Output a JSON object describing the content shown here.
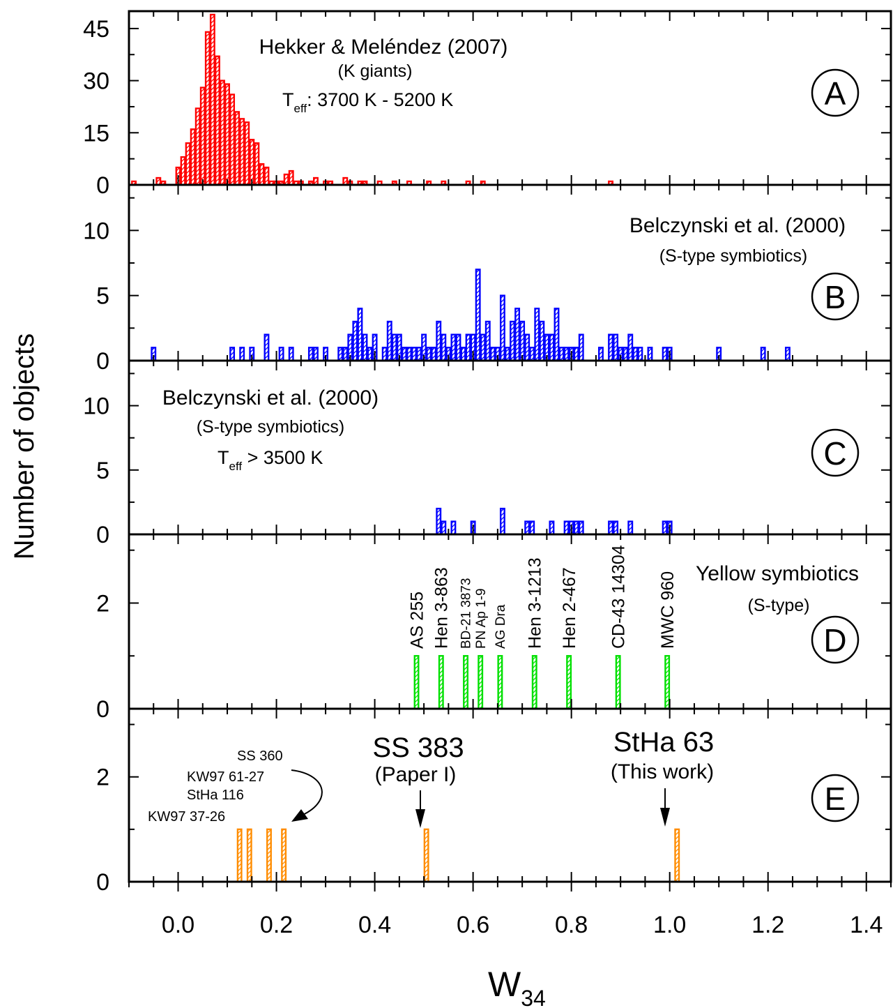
{
  "chart_data": {
    "type": "bar",
    "ylabel": "Number of objects",
    "xlabel_main": "W",
    "xlabel_sub": "34",
    "xlim": [
      -0.1,
      1.45
    ],
    "xticks": [
      "0.0",
      "0.2",
      "0.4",
      "0.6",
      "0.8",
      "1.0",
      "1.2",
      "1.4"
    ],
    "bin_width": 0.01,
    "panels": [
      {
        "id": "A",
        "badge": "A",
        "color": "#ff0000",
        "ylim": [
          0,
          50
        ],
        "yticks": [
          "0",
          "15",
          "30",
          "45"
        ],
        "annotation": {
          "line1": "Hekker & Meléndez (2007)",
          "line2": "(K giants)",
          "line3_pre": "T",
          "line3_sub": "eff",
          "line3_post": ": 3700 K - 5200 K"
        },
        "bins": [
          {
            "x": -0.09,
            "y": 1
          },
          {
            "x": -0.04,
            "y": 2
          },
          {
            "x": -0.03,
            "y": 1
          },
          {
            "x": 0.0,
            "y": 5
          },
          {
            "x": 0.01,
            "y": 8
          },
          {
            "x": 0.02,
            "y": 12
          },
          {
            "x": 0.03,
            "y": 16
          },
          {
            "x": 0.04,
            "y": 22
          },
          {
            "x": 0.05,
            "y": 28
          },
          {
            "x": 0.06,
            "y": 44
          },
          {
            "x": 0.07,
            "y": 49
          },
          {
            "x": 0.08,
            "y": 37
          },
          {
            "x": 0.09,
            "y": 30
          },
          {
            "x": 0.1,
            "y": 29
          },
          {
            "x": 0.11,
            "y": 26
          },
          {
            "x": 0.12,
            "y": 21
          },
          {
            "x": 0.13,
            "y": 19
          },
          {
            "x": 0.14,
            "y": 18
          },
          {
            "x": 0.15,
            "y": 13
          },
          {
            "x": 0.16,
            "y": 12
          },
          {
            "x": 0.17,
            "y": 6
          },
          {
            "x": 0.18,
            "y": 5
          },
          {
            "x": 0.19,
            "y": 1
          },
          {
            "x": 0.2,
            "y": 1
          },
          {
            "x": 0.21,
            "y": 1
          },
          {
            "x": 0.22,
            "y": 3
          },
          {
            "x": 0.23,
            "y": 4
          },
          {
            "x": 0.24,
            "y": 1
          },
          {
            "x": 0.25,
            "y": 1
          },
          {
            "x": 0.27,
            "y": 1
          },
          {
            "x": 0.28,
            "y": 2
          },
          {
            "x": 0.3,
            "y": 1
          },
          {
            "x": 0.31,
            "y": 1
          },
          {
            "x": 0.34,
            "y": 2
          },
          {
            "x": 0.35,
            "y": 1
          },
          {
            "x": 0.37,
            "y": 1
          },
          {
            "x": 0.38,
            "y": 1
          },
          {
            "x": 0.41,
            "y": 1
          },
          {
            "x": 0.44,
            "y": 1
          },
          {
            "x": 0.47,
            "y": 1
          },
          {
            "x": 0.51,
            "y": 1
          },
          {
            "x": 0.54,
            "y": 1
          },
          {
            "x": 0.59,
            "y": 1
          },
          {
            "x": 0.62,
            "y": 1
          },
          {
            "x": 0.88,
            "y": 1
          }
        ]
      },
      {
        "id": "B",
        "badge": "B",
        "color": "#0000ff",
        "ylim": [
          0,
          13.5
        ],
        "yticks": [
          "0",
          "5",
          "10"
        ],
        "annotation": {
          "line1": "Belczynski et al. (2000)",
          "line2": "(S-type symbiotics)"
        },
        "bins": [
          {
            "x": -0.05,
            "y": 1
          },
          {
            "x": 0.11,
            "y": 1
          },
          {
            "x": 0.13,
            "y": 1
          },
          {
            "x": 0.15,
            "y": 1
          },
          {
            "x": 0.18,
            "y": 2
          },
          {
            "x": 0.21,
            "y": 1
          },
          {
            "x": 0.23,
            "y": 1
          },
          {
            "x": 0.27,
            "y": 1
          },
          {
            "x": 0.28,
            "y": 1
          },
          {
            "x": 0.3,
            "y": 1
          },
          {
            "x": 0.33,
            "y": 1
          },
          {
            "x": 0.34,
            "y": 1
          },
          {
            "x": 0.35,
            "y": 2
          },
          {
            "x": 0.36,
            "y": 3
          },
          {
            "x": 0.37,
            "y": 4
          },
          {
            "x": 0.38,
            "y": 2
          },
          {
            "x": 0.39,
            "y": 1
          },
          {
            "x": 0.4,
            "y": 2
          },
          {
            "x": 0.42,
            "y": 1
          },
          {
            "x": 0.43,
            "y": 3
          },
          {
            "x": 0.44,
            "y": 2
          },
          {
            "x": 0.45,
            "y": 2
          },
          {
            "x": 0.46,
            "y": 1
          },
          {
            "x": 0.47,
            "y": 1
          },
          {
            "x": 0.48,
            "y": 1
          },
          {
            "x": 0.49,
            "y": 1
          },
          {
            "x": 0.5,
            "y": 2
          },
          {
            "x": 0.51,
            "y": 1
          },
          {
            "x": 0.52,
            "y": 1
          },
          {
            "x": 0.53,
            "y": 3
          },
          {
            "x": 0.54,
            "y": 2
          },
          {
            "x": 0.55,
            "y": 1
          },
          {
            "x": 0.56,
            "y": 2
          },
          {
            "x": 0.57,
            "y": 2
          },
          {
            "x": 0.58,
            "y": 1
          },
          {
            "x": 0.59,
            "y": 2
          },
          {
            "x": 0.6,
            "y": 2
          },
          {
            "x": 0.61,
            "y": 7
          },
          {
            "x": 0.62,
            "y": 2
          },
          {
            "x": 0.63,
            "y": 3
          },
          {
            "x": 0.64,
            "y": 1
          },
          {
            "x": 0.65,
            "y": 1
          },
          {
            "x": 0.66,
            "y": 5
          },
          {
            "x": 0.67,
            "y": 1
          },
          {
            "x": 0.68,
            "y": 3
          },
          {
            "x": 0.69,
            "y": 4
          },
          {
            "x": 0.7,
            "y": 3
          },
          {
            "x": 0.71,
            "y": 2
          },
          {
            "x": 0.72,
            "y": 1
          },
          {
            "x": 0.73,
            "y": 4
          },
          {
            "x": 0.74,
            "y": 3
          },
          {
            "x": 0.75,
            "y": 2
          },
          {
            "x": 0.76,
            "y": 2
          },
          {
            "x": 0.77,
            "y": 4
          },
          {
            "x": 0.78,
            "y": 1
          },
          {
            "x": 0.79,
            "y": 1
          },
          {
            "x": 0.8,
            "y": 1
          },
          {
            "x": 0.81,
            "y": 1
          },
          {
            "x": 0.82,
            "y": 2
          },
          {
            "x": 0.86,
            "y": 1
          },
          {
            "x": 0.88,
            "y": 2
          },
          {
            "x": 0.89,
            "y": 2
          },
          {
            "x": 0.9,
            "y": 1
          },
          {
            "x": 0.91,
            "y": 1
          },
          {
            "x": 0.92,
            "y": 2
          },
          {
            "x": 0.93,
            "y": 1
          },
          {
            "x": 0.94,
            "y": 1
          },
          {
            "x": 0.96,
            "y": 1
          },
          {
            "x": 0.99,
            "y": 1
          },
          {
            "x": 1.0,
            "y": 1
          },
          {
            "x": 1.1,
            "y": 1
          },
          {
            "x": 1.19,
            "y": 1
          },
          {
            "x": 1.24,
            "y": 1
          }
        ]
      },
      {
        "id": "C",
        "badge": "C",
        "color": "#0000ff",
        "ylim": [
          0,
          13.5
        ],
        "yticks": [
          "0",
          "5",
          "10"
        ],
        "annotation": {
          "line1": "Belczynski et al. (2000)",
          "line2": "(S-type symbiotics)",
          "line3_pre": "T",
          "line3_sub": "eff",
          "line3_post": " > 3500 K"
        },
        "bins": [
          {
            "x": 0.53,
            "y": 2
          },
          {
            "x": 0.54,
            "y": 1
          },
          {
            "x": 0.56,
            "y": 1
          },
          {
            "x": 0.6,
            "y": 1
          },
          {
            "x": 0.66,
            "y": 2
          },
          {
            "x": 0.71,
            "y": 1
          },
          {
            "x": 0.72,
            "y": 1
          },
          {
            "x": 0.76,
            "y": 1
          },
          {
            "x": 0.79,
            "y": 1
          },
          {
            "x": 0.8,
            "y": 1
          },
          {
            "x": 0.81,
            "y": 1
          },
          {
            "x": 0.82,
            "y": 1
          },
          {
            "x": 0.88,
            "y": 1
          },
          {
            "x": 0.89,
            "y": 1
          },
          {
            "x": 0.92,
            "y": 1
          },
          {
            "x": 0.99,
            "y": 1
          },
          {
            "x": 1.0,
            "y": 1
          }
        ]
      },
      {
        "id": "D",
        "badge": "D",
        "color": "#00e000",
        "ylim": [
          0,
          3.3
        ],
        "yticks": [
          "0",
          "2"
        ],
        "annotation": {
          "line1": "Yellow symbiotics",
          "line2": "(S-type)"
        },
        "bins": [
          {
            "x": 0.485,
            "y": 1
          },
          {
            "x": 0.535,
            "y": 1
          },
          {
            "x": 0.585,
            "y": 1
          },
          {
            "x": 0.615,
            "y": 1
          },
          {
            "x": 0.655,
            "y": 1
          },
          {
            "x": 0.725,
            "y": 1
          },
          {
            "x": 0.795,
            "y": 1
          },
          {
            "x": 0.895,
            "y": 1
          },
          {
            "x": 0.995,
            "y": 1
          }
        ],
        "object_labels": [
          {
            "x": 0.485,
            "text": "AS 255",
            "size": "large"
          },
          {
            "x": 0.535,
            "text": "Hen 3-863",
            "size": "large"
          },
          {
            "x": 0.585,
            "text": "BD-21 3873",
            "size": "small"
          },
          {
            "x": 0.615,
            "text": "PN Ap 1-9",
            "size": "small"
          },
          {
            "x": 0.655,
            "text": "AG Dra",
            "size": "small"
          },
          {
            "x": 0.725,
            "text": "Hen 3-1213",
            "size": "large"
          },
          {
            "x": 0.795,
            "text": "Hen 2-467",
            "size": "large"
          },
          {
            "x": 0.895,
            "text": "CD-43 14304",
            "size": "large"
          },
          {
            "x": 0.995,
            "text": "MWC 960",
            "size": "large"
          }
        ]
      },
      {
        "id": "E",
        "badge": "E",
        "color": "#ff8c00",
        "ylim": [
          0,
          3.3
        ],
        "yticks": [
          "0",
          "2"
        ],
        "bins": [
          {
            "x": 0.125,
            "y": 1
          },
          {
            "x": 0.145,
            "y": 1
          },
          {
            "x": 0.185,
            "y": 1
          },
          {
            "x": 0.215,
            "y": 1
          },
          {
            "x": 0.505,
            "y": 1
          },
          {
            "x": 1.015,
            "y": 1
          }
        ],
        "annotations": {
          "ss360": "SS 360",
          "kw97_61": "KW97 61-27",
          "stha116": "StHa 116",
          "kw97_37": "KW97 37-26",
          "ss383": "SS 383",
          "paper1": "(Paper I)",
          "stha63": "StHa 63",
          "thiswork": "(This work)"
        }
      }
    ]
  }
}
